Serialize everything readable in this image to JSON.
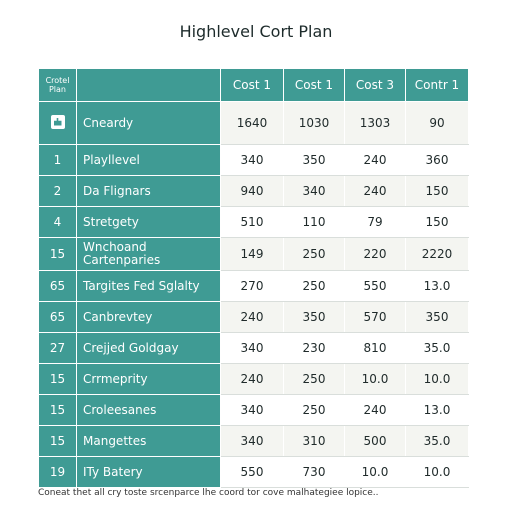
{
  "title": "Highlevel Cort Plan",
  "header": {
    "corner": "Crotel Plan",
    "columns": [
      "Cost 1",
      "Cost 1",
      "Cost 3",
      "Contr 1"
    ]
  },
  "rows": [
    {
      "num": "",
      "name": "Cneardy",
      "values": [
        "1640",
        "1030",
        "1303",
        "90"
      ]
    },
    {
      "num": "1",
      "name": "Playllevel",
      "values": [
        "340",
        "350",
        "240",
        "360"
      ]
    },
    {
      "num": "2",
      "name": "Da Flignars",
      "values": [
        "940",
        "340",
        "240",
        "150"
      ]
    },
    {
      "num": "4",
      "name": "Stretgety",
      "values": [
        "510",
        "110",
        "79",
        "150"
      ]
    },
    {
      "num": "15",
      "name": "Wnchoand Cartenparies",
      "values": [
        "149",
        "250",
        "220",
        "2220"
      ]
    },
    {
      "num": "65",
      "name": "Targites Fed Sglalty",
      "values": [
        "270",
        "250",
        "550",
        "13.0"
      ]
    },
    {
      "num": "65",
      "name": "Canbrevtey",
      "values": [
        "240",
        "350",
        "570",
        "350"
      ]
    },
    {
      "num": "27",
      "name": "Crejjed Goldgay",
      "values": [
        "340",
        "230",
        "810",
        "35.0"
      ]
    },
    {
      "num": "15",
      "name": "Crrmeprity",
      "values": [
        "240",
        "250",
        "10.0",
        "10.0"
      ]
    },
    {
      "num": "15",
      "name": "Croleesanes",
      "values": [
        "340",
        "250",
        "240",
        "13.0"
      ]
    },
    {
      "num": "15",
      "name": "Mangettes",
      "values": [
        "340",
        "310",
        "500",
        "35.0"
      ]
    },
    {
      "num": "19",
      "name": "ITy Batery",
      "values": [
        "550",
        "730",
        "10.0",
        "10.0"
      ]
    }
  ],
  "footnote": "Coneat thet all cry toste srcenparce lhe coord tor cove malhategiee lopice..",
  "colors": {
    "accent": "#3f9b94",
    "row_alt": "#f4f5f1",
    "text": "#1f2a2a"
  },
  "icons": {
    "first_row": "building-icon"
  }
}
